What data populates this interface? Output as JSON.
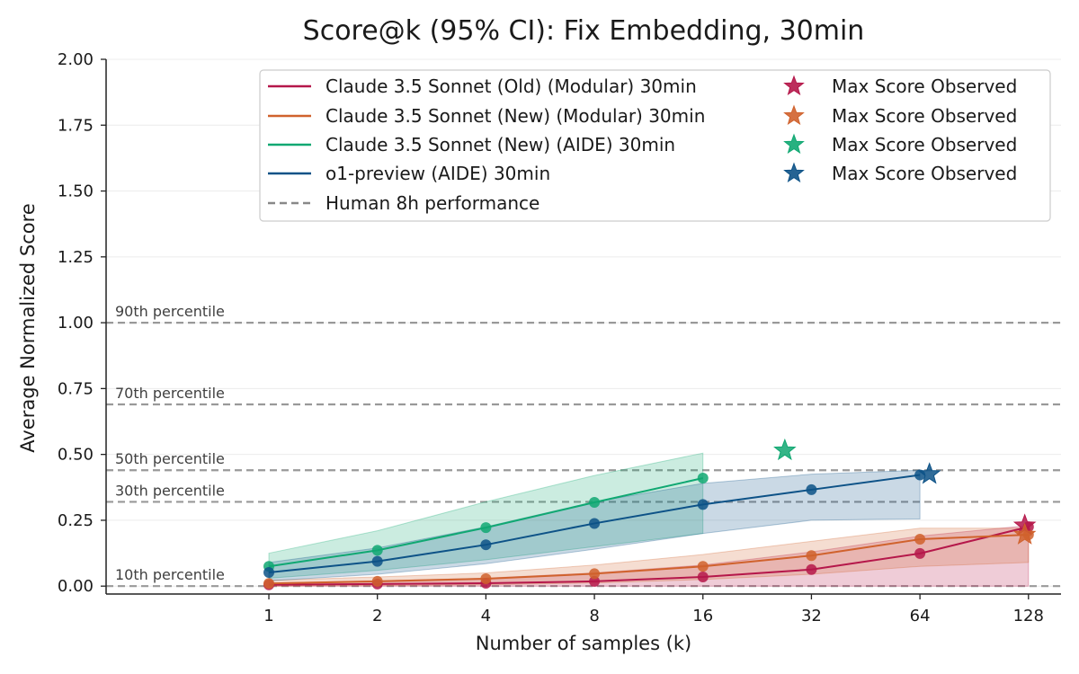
{
  "chart_data": {
    "type": "line",
    "title": "Score@k (95% CI): Fix Embedding, 30min",
    "xlabel": "Number of samples (k)",
    "ylabel": "Average Normalized Score",
    "x_scale": "log2",
    "x_ticks": [
      1,
      2,
      4,
      8,
      16,
      32,
      64,
      128
    ],
    "x_tick_labels": [
      "1",
      "2",
      "4",
      "8",
      "16",
      "32",
      "64",
      "128"
    ],
    "y_ticks": [
      0,
      0.25,
      0.5,
      0.75,
      1.0,
      1.25,
      1.5,
      1.75,
      2.0
    ],
    "y_tick_labels": [
      "0.00",
      "0.25",
      "0.50",
      "0.75",
      "1.00",
      "1.25",
      "1.50",
      "1.75",
      "2.00"
    ],
    "ylim": [
      -0.03,
      2.0
    ],
    "xlim_log2": [
      -1.5,
      7.3
    ],
    "grid": "horizontal",
    "legend_position": "top-right",
    "series": [
      {
        "name": "Claude 3.5 Sonnet (Old) (Modular) 30min",
        "color": "#b5174a",
        "x": [
          1,
          2,
          4,
          8,
          16,
          32,
          64,
          128
        ],
        "values": [
          0.005,
          0.008,
          0.011,
          0.018,
          0.035,
          0.063,
          0.124,
          0.225
        ],
        "ci_low": [
          0.0,
          0.0,
          0.0,
          0.0,
          0.0,
          0.0,
          0.0,
          0.0
        ],
        "ci_high": [
          0.012,
          0.02,
          0.03,
          0.05,
          0.08,
          0.13,
          0.19,
          0.23
        ],
        "max_score": {
          "x": 125,
          "value": 0.23
        }
      },
      {
        "name": "Claude 3.5 Sonnet (New) (Modular) 30min",
        "color": "#d0622d",
        "x": [
          1,
          2,
          4,
          8,
          16,
          32,
          64,
          128
        ],
        "values": [
          0.01,
          0.018,
          0.028,
          0.047,
          0.075,
          0.116,
          0.178,
          0.195
        ],
        "ci_low": [
          0.0,
          0.002,
          0.005,
          0.012,
          0.025,
          0.045,
          0.075,
          0.09
        ],
        "ci_high": [
          0.022,
          0.035,
          0.05,
          0.08,
          0.12,
          0.17,
          0.22,
          0.22
        ],
        "max_score": {
          "x": 125,
          "value": 0.195
        }
      },
      {
        "name": "Claude 3.5 Sonnet (New) (AIDE) 30min",
        "color": "#10a872",
        "x": [
          1,
          2,
          4,
          8,
          16
        ],
        "values": [
          0.075,
          0.136,
          0.222,
          0.318,
          0.41
        ],
        "ci_low": [
          0.03,
          0.06,
          0.1,
          0.15,
          0.2
        ],
        "ci_high": [
          0.125,
          0.21,
          0.32,
          0.42,
          0.505
        ],
        "max_score": {
          "x": 27,
          "value": 0.515
        }
      },
      {
        "name": "o1-preview (AIDE) 30min",
        "color": "#0d5287",
        "x": [
          1,
          2,
          4,
          8,
          16,
          32,
          64
        ],
        "values": [
          0.052,
          0.094,
          0.157,
          0.238,
          0.31,
          0.366,
          0.422
        ],
        "ci_low": [
          0.02,
          0.045,
          0.085,
          0.14,
          0.2,
          0.25,
          0.255
        ],
        "ci_high": [
          0.09,
          0.145,
          0.225,
          0.32,
          0.39,
          0.425,
          0.44
        ],
        "max_score": {
          "x": 68,
          "value": 0.425
        }
      }
    ],
    "reference_lines": [
      {
        "label": "90th percentile",
        "value": 1.0
      },
      {
        "label": "70th percentile",
        "value": 0.69
      },
      {
        "label": "50th percentile",
        "value": 0.44
      },
      {
        "label": "30th percentile",
        "value": 0.32
      },
      {
        "label": "10th percentile",
        "value": 0.0
      }
    ],
    "legend": {
      "human_label": "Human 8h performance",
      "max_label": "Max Score Observed"
    }
  }
}
